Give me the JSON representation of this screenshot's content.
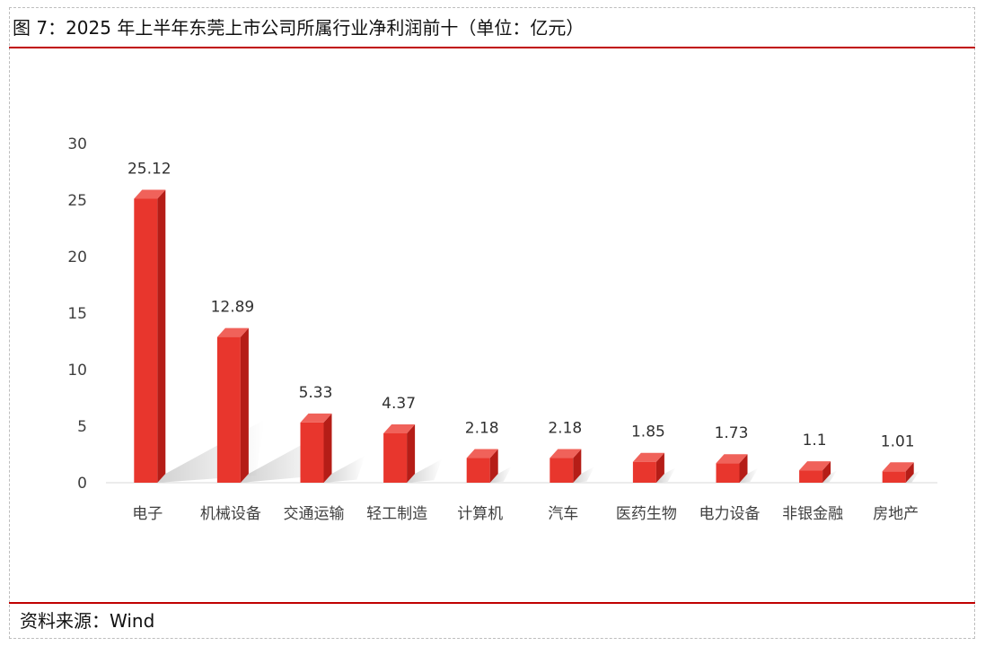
{
  "header": {
    "title": "图 7：2025 年上半年东莞上市公司所属行业净利润前十（单位：亿元）"
  },
  "footer": {
    "source": "资料来源：Wind"
  },
  "colors": {
    "bar_front": "#e8362d",
    "bar_side": "#b51d17",
    "bar_top": "#f0625a",
    "rule": "#c00000"
  },
  "chart_data": {
    "type": "bar",
    "title": "",
    "xlabel": "",
    "ylabel": "",
    "ylim": [
      0,
      30
    ],
    "yticks": [
      0,
      5,
      10,
      15,
      20,
      25,
      30
    ],
    "grid": false,
    "categories": [
      "电子",
      "机械设备",
      "交通运输",
      "轻工制造",
      "计算机",
      "汽车",
      "医药生物",
      "电力设备",
      "非银金融",
      "房地产"
    ],
    "values": [
      25.12,
      12.89,
      5.33,
      4.37,
      2.18,
      2.18,
      1.85,
      1.73,
      1.1,
      1.01
    ],
    "value_labels": [
      "25.12",
      "12.89",
      "5.33",
      "4.37",
      "2.18",
      "2.18",
      "1.85",
      "1.73",
      "1.1",
      "1.01"
    ]
  }
}
